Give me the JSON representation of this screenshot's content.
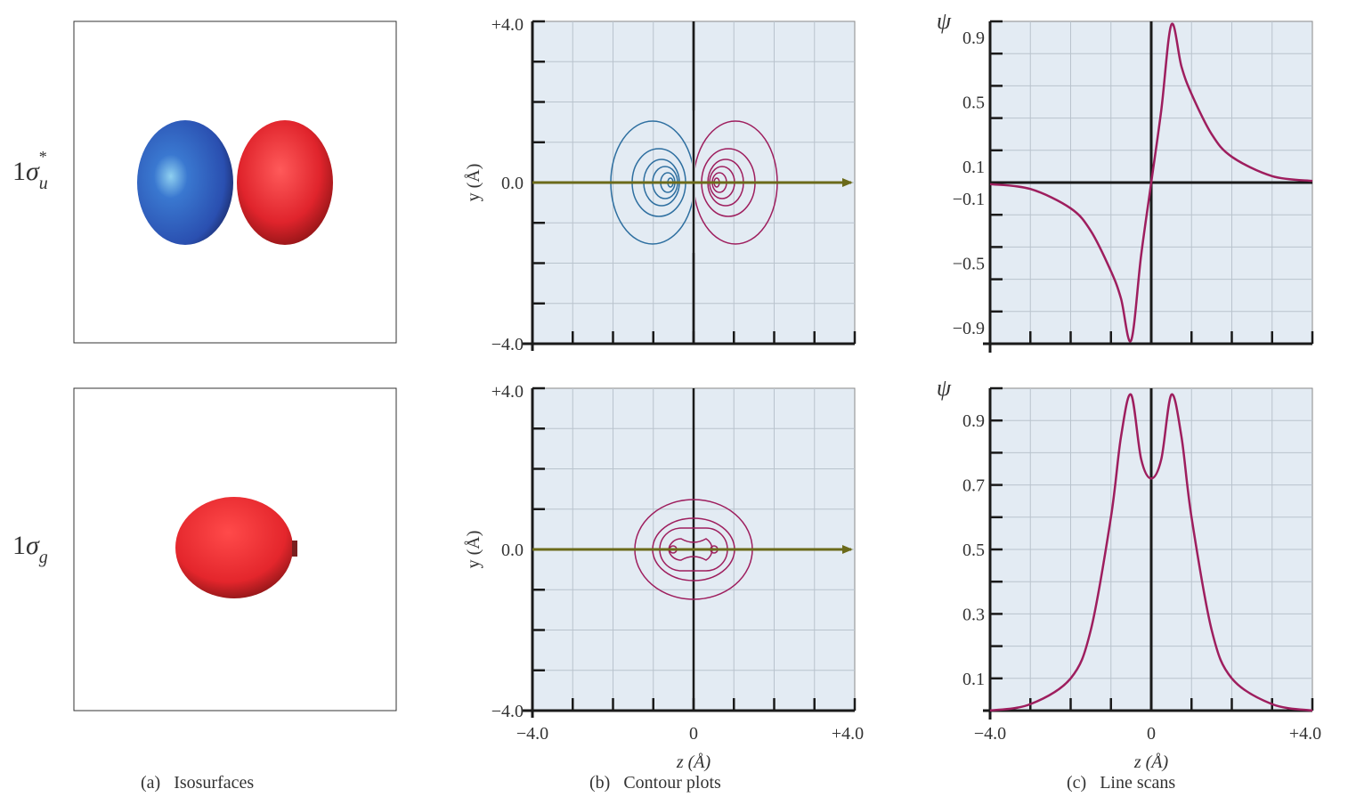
{
  "rows": [
    {
      "label_prefix": "1",
      "label_symbol": "σ",
      "label_sub": "u",
      "label_sup": "*"
    },
    {
      "label_prefix": "1",
      "label_symbol": "σ",
      "label_sub": "g",
      "label_sup": ""
    }
  ],
  "captions": {
    "a_letter": "(a)",
    "a_text": "Isosurfaces",
    "b_letter": "(b)",
    "b_text": "Contour plots",
    "c_letter": "(c)",
    "c_text": "Line scans"
  },
  "contour_axes": {
    "y_top": "+4.0",
    "y_mid": "0.0",
    "y_bottom": "−4.0",
    "y_label": "y (Å)",
    "x_left": "−4.0",
    "x_mid": "0",
    "x_right": "+4.0",
    "x_label": "z (Å)"
  },
  "colors": {
    "panel_bg": "#e3ebf3",
    "grid": "#b9c3cd",
    "axis": "#1a1a1a",
    "negative_lobe": "#2e6fa0",
    "positive_lobe": "#9e1e5e",
    "arrow": "#6b6a1a",
    "curve": "#9e1e5e",
    "iso_blue": "#2f56b8",
    "iso_red": "#e0242c"
  },
  "chart_data": [
    {
      "type": "line",
      "row": "1σu*",
      "y_symbol": "ψ",
      "xlabel": "z (Å)",
      "xlim": [
        -4.0,
        4.0
      ],
      "ylim": [
        -1.0,
        1.0
      ],
      "y_ticks": [
        "0.9",
        "0.5",
        "0.1",
        "−0.1",
        "−0.5",
        "−0.9"
      ],
      "x_ticks": [],
      "x": [
        -4.0,
        -3.0,
        -2.0,
        -1.5,
        -1.0,
        -0.75,
        -0.5,
        -0.25,
        0.0,
        0.25,
        0.5,
        0.75,
        1.0,
        1.5,
        2.0,
        3.0,
        4.0
      ],
      "y": [
        -0.01,
        -0.04,
        -0.16,
        -0.3,
        -0.55,
        -0.72,
        -0.98,
        -0.45,
        0.0,
        0.45,
        0.98,
        0.72,
        0.55,
        0.3,
        0.16,
        0.04,
        0.01
      ]
    },
    {
      "type": "line",
      "row": "1σg",
      "y_symbol": "ψ",
      "xlabel": "z (Å)",
      "xlim": [
        -4.0,
        4.0
      ],
      "ylim": [
        0.0,
        1.0
      ],
      "y_ticks": [
        "0.9",
        "0.7",
        "0.5",
        "0.3",
        "0.1"
      ],
      "x_ticks": [
        "−4.0",
        "0",
        "+4.0"
      ],
      "x": [
        -4.0,
        -3.0,
        -2.0,
        -1.5,
        -1.0,
        -0.75,
        -0.5,
        -0.25,
        0.0,
        0.25,
        0.5,
        0.75,
        1.0,
        1.5,
        2.0,
        3.0,
        4.0
      ],
      "y": [
        0.0,
        0.02,
        0.1,
        0.25,
        0.6,
        0.85,
        0.98,
        0.78,
        0.72,
        0.78,
        0.98,
        0.85,
        0.6,
        0.25,
        0.1,
        0.02,
        0.0
      ]
    }
  ]
}
